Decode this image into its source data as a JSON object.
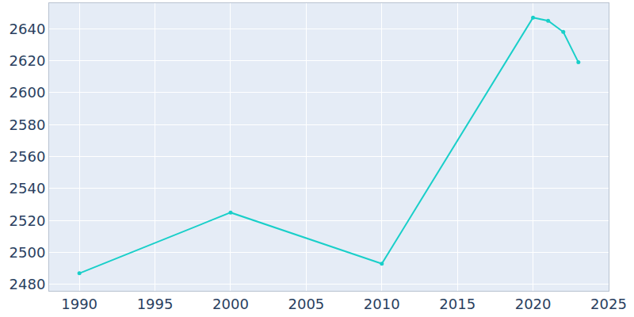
{
  "chart_data": {
    "type": "line",
    "x": [
      1990,
      2000,
      2010,
      2020,
      2021,
      2022,
      2023
    ],
    "values": [
      2487,
      2525,
      2493,
      2647,
      2645,
      2638,
      2619
    ],
    "color": "#19cfc9",
    "marker": "circle",
    "xlim": [
      1988,
      2025
    ],
    "xticks": [
      1990,
      1995,
      2000,
      2005,
      2010,
      2015,
      2020,
      2025
    ],
    "ylim": [
      2476,
      2656
    ],
    "yticks": [
      2480,
      2500,
      2520,
      2540,
      2560,
      2580,
      2600,
      2620,
      2640
    ],
    "grid": true
  }
}
